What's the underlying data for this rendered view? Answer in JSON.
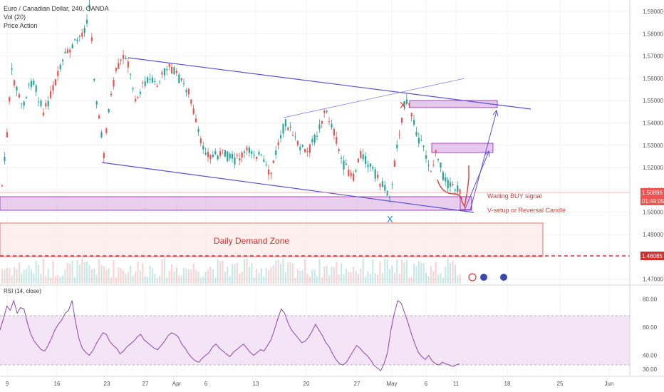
{
  "header": {
    "symbol_line": "Euro / Canadian Dollar, 240, OANDA",
    "indicator_1": "Vol (20)",
    "indicator_2": "Price Action"
  },
  "rsi_panel": {
    "label": "RSI (14, close)",
    "ticks": [
      "80.00",
      "60.00",
      "40.00",
      "30.00"
    ]
  },
  "colors": {
    "up": "#26a69a",
    "down": "#ef5350",
    "channel": "#5b4fd8",
    "zone_fill": "#e1bee7",
    "demand_fill": "#fce8e6",
    "rsi_line": "#8e44ad",
    "rsi_band": "#f3e5f5"
  },
  "chart_data": {
    "type": "candlestick",
    "price_axis": {
      "ticks": [
        "1.59000",
        "1.58000",
        "1.57000",
        "1.56000",
        "1.55000",
        "1.54000",
        "1.53000",
        "1.52000",
        "1.51000",
        "1.50000",
        "1.49000",
        "1.48000",
        "1.47000"
      ],
      "last_price": "1.50896",
      "countdown": "01:49:05",
      "demand_level": "1.48085"
    },
    "time_axis": {
      "labels": [
        "9",
        "16",
        "23",
        "27",
        "Apr",
        "6",
        "13",
        "20",
        "27",
        "May",
        "6",
        "11",
        "18",
        "25",
        "Jun"
      ]
    },
    "annotations": {
      "demand_zone": "Daily Demand Zone",
      "waiting": "Waiting BUY signal",
      "setup": "V-setup or Reversal Candle",
      "marker_top": "X",
      "marker_bottom": "X"
    },
    "rsi_series": [
      58,
      66,
      75,
      72,
      79,
      70,
      74,
      73,
      63,
      55,
      50,
      47,
      44,
      43,
      47,
      52,
      58,
      62,
      65,
      70,
      72,
      79,
      64,
      52,
      45,
      42,
      40,
      43,
      48,
      52,
      56,
      55,
      50,
      47,
      45,
      41,
      43,
      46,
      48,
      50,
      53,
      55,
      51,
      49,
      47,
      45,
      44,
      47,
      50,
      54,
      56,
      55,
      53,
      48,
      45,
      41,
      38,
      36,
      35,
      38,
      40,
      42,
      46,
      48,
      45,
      43,
      41,
      39,
      42,
      44,
      46,
      48,
      45,
      42,
      40,
      42,
      44,
      43,
      47,
      51,
      58,
      66,
      73,
      70,
      63,
      58,
      55,
      52,
      49,
      50,
      53,
      57,
      62,
      58,
      54,
      49,
      46,
      41,
      37,
      34,
      33,
      35,
      39,
      43,
      47,
      45,
      42,
      40,
      37,
      33,
      31,
      29,
      34,
      42,
      58,
      70,
      79,
      77,
      70,
      63,
      55,
      48,
      42,
      39,
      37,
      40,
      36,
      34,
      33,
      35,
      34,
      33,
      32,
      33,
      34
    ],
    "rsi_range": [
      25,
      90
    ]
  }
}
